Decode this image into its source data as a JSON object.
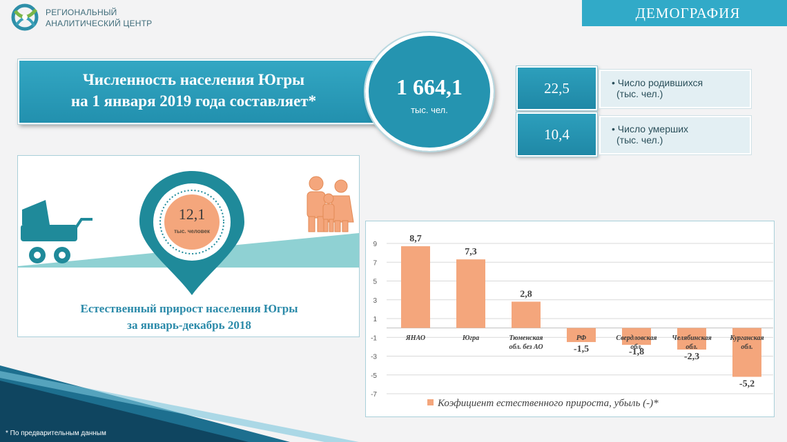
{
  "header": {
    "org_line1": "РЕГИОНАЛЬНЫЙ",
    "org_line2": "АНАЛИТИЧЕСКИЙ ЦЕНТР",
    "section": "ДЕМОГРАФИЯ"
  },
  "population": {
    "title_line1": "Численность населения  Югры",
    "title_line2": "на 1 января 2019 года составляет*",
    "value": "1 664,1",
    "unit": "тыс. чел."
  },
  "stats": [
    {
      "value": "22,5",
      "label_line1": "• Число родившихся",
      "label_line2": "(тыс. чел.)"
    },
    {
      "value": "10,4",
      "label_line1": "• Число умерших",
      "label_line2": "(тыс. чел.)"
    }
  ],
  "natural_growth": {
    "value": "12,1",
    "unit": "тыс. человек",
    "caption_line1": "Естественный прирост населения Югры",
    "caption_line2": "за январь-декабрь 2018"
  },
  "colors": {
    "accent": "#2b9cbb",
    "dark_teal": "#1f8a9a",
    "bar": "#f4a67c",
    "light_teal": "#8fd1d3"
  },
  "chart_data": {
    "type": "bar",
    "categories": [
      [
        "ЯНАО"
      ],
      [
        "Югра"
      ],
      [
        "Тюменская",
        "обл. без АО"
      ],
      [
        "РФ"
      ],
      [
        "Свердловская",
        "обл."
      ],
      [
        "Челябинская",
        "обл."
      ],
      [
        "Курганская",
        "обл."
      ]
    ],
    "values": [
      8.7,
      7.3,
      2.8,
      -1.5,
      -1.8,
      -2.3,
      -5.2
    ],
    "value_labels": [
      "8,7",
      "7,3",
      "2,8",
      "-1,5",
      "-1,8",
      "-2,3",
      "-5,2"
    ],
    "y_ticks": [
      "9",
      "7",
      "5",
      "3",
      "1",
      "-1",
      "-3",
      "-5",
      "-7"
    ],
    "ylim": [
      -7,
      9
    ],
    "grid": true,
    "legend_position": "bottom",
    "series": [
      {
        "name": "Коэфициент естественного прироста, убыль (-)*"
      }
    ]
  },
  "footnote": "* По предварительным данным"
}
